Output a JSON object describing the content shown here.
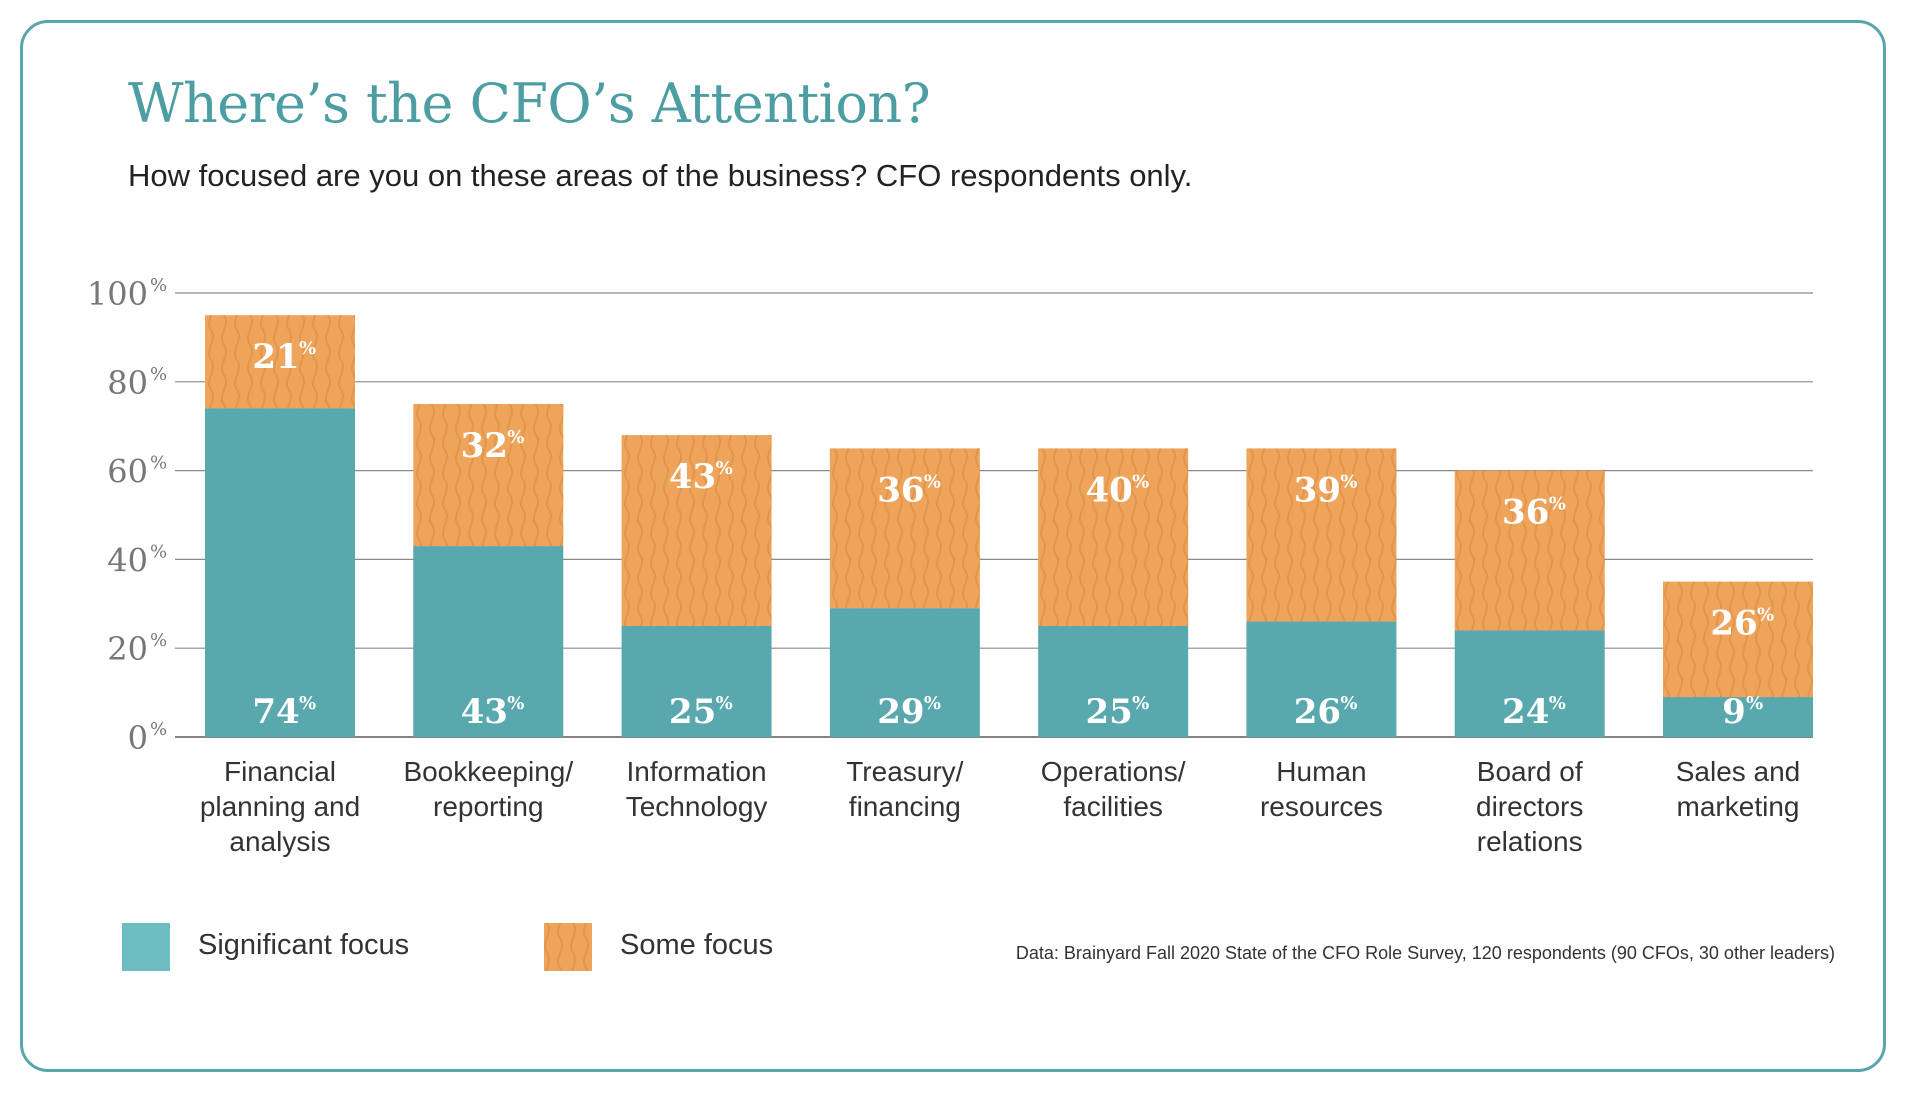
{
  "title": "Where’s the CFO’s Attention?",
  "subtitle": "How focused are you on these areas of the business? CFO respondents only.",
  "source": "Data: Brainyard Fall 2020 State of the CFO Role Survey, 120 respondents (90 CFOs, 30 other leaders)",
  "colors": {
    "frame": "#5aa7ab",
    "title": "#4d9ea3",
    "significant": "#59a8ae",
    "some": "#eea45a",
    "legend_significant": "#6dbcc2",
    "grid": "#8a8a8a",
    "tick_text": "#777777"
  },
  "legend": {
    "significant_label": "Significant focus",
    "some_label": "Some focus"
  },
  "chart_data": {
    "type": "bar",
    "stacked": true,
    "title": "Where’s the CFO’s Attention?",
    "ylim": [
      0,
      100
    ],
    "yticks": [
      0,
      20,
      40,
      60,
      80,
      100
    ],
    "ytick_labels": [
      "0",
      "20",
      "40",
      "60",
      "80",
      "100"
    ],
    "ytick_suffix": "%",
    "value_suffix": "%",
    "categories": [
      [
        "Financial",
        "planning and",
        "analysis"
      ],
      [
        "Bookkeeping/",
        "reporting"
      ],
      [
        "Information",
        "Technology"
      ],
      [
        "Treasury/",
        "financing"
      ],
      [
        "Operations/",
        "facilities"
      ],
      [
        "Human",
        "resources"
      ],
      [
        "Board of",
        "directors",
        "relations"
      ],
      [
        "Sales and",
        "marketing"
      ]
    ],
    "series": [
      {
        "name": "Significant focus",
        "values": [
          74,
          43,
          25,
          29,
          25,
          26,
          24,
          9
        ]
      },
      {
        "name": "Some focus",
        "values": [
          21,
          32,
          43,
          36,
          40,
          39,
          36,
          26
        ]
      }
    ]
  }
}
